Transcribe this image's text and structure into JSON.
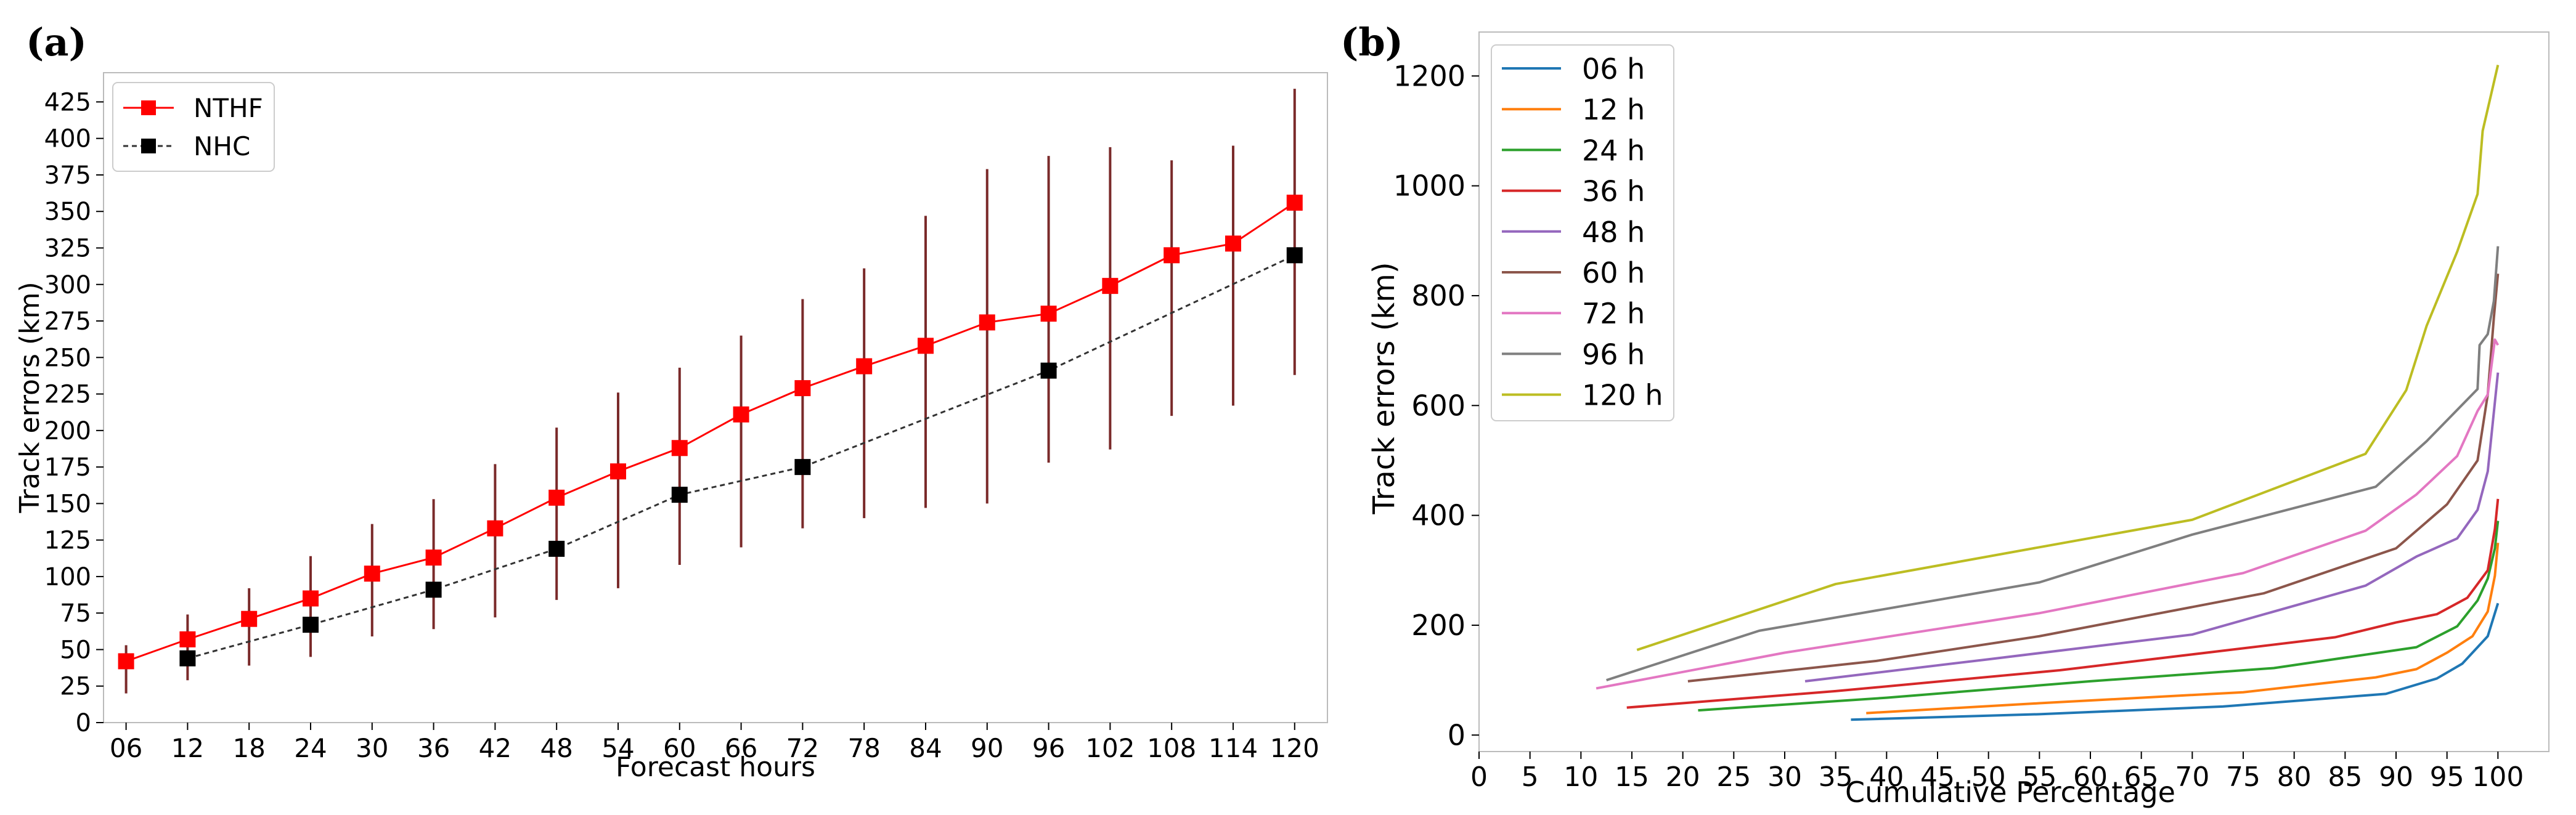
{
  "chart_data": [
    {
      "panel_label": "(a)",
      "type": "line",
      "xlabel": "Forecast hours",
      "ylabel": "Track errors (km)",
      "categories": [
        "06",
        "12",
        "18",
        "24",
        "30",
        "36",
        "42",
        "48",
        "54",
        "60",
        "66",
        "72",
        "78",
        "84",
        "90",
        "96",
        "102",
        "108",
        "114",
        "120"
      ],
      "x": [
        6,
        12,
        18,
        24,
        30,
        36,
        42,
        48,
        54,
        60,
        66,
        72,
        78,
        84,
        90,
        96,
        102,
        108,
        114,
        120
      ],
      "xlim": [
        3.8,
        123.2
      ],
      "ylim": [
        0,
        445
      ],
      "yticks": [
        0,
        25,
        50,
        75,
        100,
        125,
        150,
        175,
        200,
        225,
        250,
        275,
        300,
        325,
        350,
        375,
        400,
        425
      ],
      "legend_position": "upper-left",
      "series": [
        {
          "name": "NTHF",
          "color": "#ff0000",
          "marker": "square",
          "line_style": "solid",
          "x": [
            6,
            12,
            18,
            24,
            30,
            36,
            42,
            48,
            54,
            60,
            66,
            72,
            78,
            84,
            90,
            96,
            102,
            108,
            114,
            120
          ],
          "values": [
            42,
            57,
            71,
            85,
            102,
            113,
            133,
            154,
            172,
            188,
            211,
            229,
            244,
            258,
            274,
            280,
            299,
            320,
            328,
            356
          ],
          "err_low": [
            20,
            29,
            39,
            45,
            59,
            64,
            72,
            84,
            92,
            108,
            120,
            133,
            140,
            147,
            150,
            178,
            187,
            210,
            217,
            238
          ],
          "err_high": [
            53,
            74,
            92,
            114,
            136,
            153,
            177,
            202,
            226,
            243,
            265,
            290,
            311,
            347,
            379,
            388,
            394,
            385,
            395,
            434
          ]
        },
        {
          "name": "NHC",
          "color": "#000000",
          "marker": "square",
          "line_style": "dashed",
          "x": [
            12,
            24,
            36,
            48,
            60,
            72,
            96,
            120
          ],
          "values": [
            44,
            67,
            91,
            119,
            156,
            175,
            241,
            320
          ]
        }
      ]
    },
    {
      "panel_label": "(b)",
      "type": "line",
      "xlabel": "Cumulative Percentage",
      "ylabel": "Track errors (km)",
      "xlim": [
        0,
        105
      ],
      "ylim": [
        -30,
        1280
      ],
      "xticks": [
        0,
        5,
        10,
        15,
        20,
        25,
        30,
        35,
        40,
        45,
        50,
        55,
        60,
        65,
        70,
        75,
        80,
        85,
        90,
        95,
        100
      ],
      "yticks": [
        0,
        200,
        400,
        600,
        800,
        1000,
        1200
      ],
      "legend_position": "upper-left",
      "series": [
        {
          "name": "06 h",
          "color": "#1f77b4",
          "points": [
            [
              36.5,
              28
            ],
            [
              55,
              38
            ],
            [
              73,
              52
            ],
            [
              89,
              75
            ],
            [
              94,
              103
            ],
            [
              96.5,
              130
            ],
            [
              98,
              160
            ],
            [
              99,
              180
            ],
            [
              99.5,
              210
            ],
            [
              100,
              240
            ]
          ]
        },
        {
          "name": "12 h",
          "color": "#ff7f0e",
          "points": [
            [
              38,
              40
            ],
            [
              55,
              58
            ],
            [
              75,
              78
            ],
            [
              88,
              105
            ],
            [
              92,
              120
            ],
            [
              95,
              150
            ],
            [
              97.5,
              180
            ],
            [
              99,
              225
            ],
            [
              99.7,
              290
            ],
            [
              100,
              350
            ]
          ]
        },
        {
          "name": "24 h",
          "color": "#2ca02c",
          "points": [
            [
              21.5,
              45
            ],
            [
              40,
              68
            ],
            [
              60,
              98
            ],
            [
              78,
              122
            ],
            [
              92,
              160
            ],
            [
              96,
              198
            ],
            [
              98,
              245
            ],
            [
              99,
              285
            ],
            [
              99.7,
              340
            ],
            [
              100,
              390
            ]
          ]
        },
        {
          "name": "36 h",
          "color": "#d62728",
          "points": [
            [
              14.5,
              50
            ],
            [
              35,
              80
            ],
            [
              57,
              118
            ],
            [
              84,
              178
            ],
            [
              90,
              205
            ],
            [
              94,
              220
            ],
            [
              97,
              250
            ],
            [
              99,
              300
            ],
            [
              99.7,
              375
            ],
            [
              100,
              430
            ]
          ]
        },
        {
          "name": "48 h",
          "color": "#9467bd",
          "points": [
            [
              32,
              98
            ],
            [
              50,
              138
            ],
            [
              70,
              183
            ],
            [
              87,
              272
            ],
            [
              92,
              325
            ],
            [
              96,
              358
            ],
            [
              98,
              410
            ],
            [
              99,
              480
            ],
            [
              99.5,
              570
            ],
            [
              100,
              660
            ]
          ]
        },
        {
          "name": "60 h",
          "color": "#8c564b",
          "points": [
            [
              20.5,
              98
            ],
            [
              39,
              135
            ],
            [
              55,
              180
            ],
            [
              77,
              258
            ],
            [
              90,
              340
            ],
            [
              95,
              420
            ],
            [
              98,
              500
            ],
            [
              99,
              620
            ],
            [
              99.6,
              760
            ],
            [
              100,
              840
            ]
          ]
        },
        {
          "name": "72 h",
          "color": "#e377c2",
          "points": [
            [
              11.5,
              85
            ],
            [
              30,
              150
            ],
            [
              55,
              222
            ],
            [
              75,
              295
            ],
            [
              87,
              372
            ],
            [
              92,
              438
            ],
            [
              96,
              508
            ],
            [
              98,
              590
            ],
            [
              99,
              620
            ],
            [
              99.7,
              720
            ],
            [
              100,
              710
            ]
          ]
        },
        {
          "name": "96 h",
          "color": "#7f7f7f",
          "points": [
            [
              12.5,
              100
            ],
            [
              27.5,
              190
            ],
            [
              55,
              278
            ],
            [
              70,
              365
            ],
            [
              88,
              452
            ],
            [
              93,
              535
            ],
            [
              98,
              630
            ],
            [
              98.2,
              710
            ],
            [
              99,
              730
            ],
            [
              99.6,
              790
            ],
            [
              100,
              890
            ]
          ]
        },
        {
          "name": "120 h",
          "color": "#bcbd22",
          "points": [
            [
              15.5,
              155
            ],
            [
              35,
              275
            ],
            [
              55,
              342
            ],
            [
              70,
              392
            ],
            [
              87,
              512
            ],
            [
              91,
              628
            ],
            [
              93,
              745
            ],
            [
              96,
              880
            ],
            [
              98,
              985
            ],
            [
              98.5,
              1100
            ],
            [
              99.5,
              1180
            ],
            [
              100,
              1220
            ]
          ]
        }
      ]
    }
  ]
}
